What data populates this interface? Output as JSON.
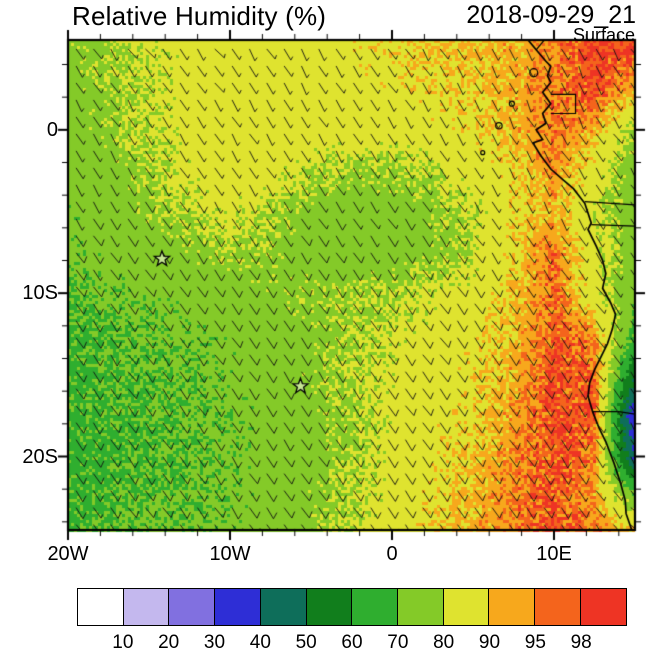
{
  "chart_data": {
    "type": "heatmap",
    "title": "Relative Humidity (%)",
    "datetime": "2018-09-29_21",
    "level": "Surface",
    "units": "%",
    "extent": {
      "lon_min": -20,
      "lon_max": 15,
      "lat_min": -24.5,
      "lat_max": 5.5
    },
    "xticks": [
      {
        "lon": -20,
        "label": "20W"
      },
      {
        "lon": -10,
        "label": "10W"
      },
      {
        "lon": 0,
        "label": "0"
      },
      {
        "lon": 10,
        "label": "10E"
      }
    ],
    "yticks": [
      {
        "lat": 0,
        "label": "0"
      },
      {
        "lat": -10,
        "label": "10S"
      },
      {
        "lat": -20,
        "label": "20S"
      }
    ],
    "levels": [
      10,
      20,
      30,
      40,
      50,
      60,
      70,
      80,
      90,
      95,
      98
    ],
    "colors": [
      "#ffffff",
      "#c4b8ee",
      "#8170e0",
      "#2e2ed6",
      "#0e6e5a",
      "#117e1c",
      "#2fae2f",
      "#84ca28",
      "#dfe32f",
      "#f7a81c",
      "#f4641c",
      "#ee3424"
    ],
    "colorbar_labels": [
      "10",
      "20",
      "30",
      "40",
      "50",
      "60",
      "70",
      "80",
      "90",
      "95",
      "98"
    ],
    "rh_grid": {
      "lons": [
        -20,
        -17.5,
        -15,
        -12.5,
        -10,
        -7.5,
        -5,
        -2.5,
        0,
        2.5,
        5,
        7.5,
        10,
        12.5,
        15
      ],
      "lats": [
        5,
        2.5,
        0,
        -2.5,
        -5,
        -7.5,
        -10,
        -12.5,
        -15,
        -17.5,
        -20,
        -22.5,
        -25
      ],
      "values": [
        [
          77,
          79,
          82,
          84,
          85,
          86,
          86,
          87,
          88,
          90,
          91,
          92,
          94,
          99,
          99
        ],
        [
          76,
          78,
          81,
          84,
          85,
          85,
          85,
          86,
          87,
          88,
          90,
          92,
          95,
          99,
          92
        ],
        [
          75,
          78,
          81,
          84,
          86,
          85,
          85,
          85,
          85,
          86,
          88,
          91,
          96,
          92,
          78
        ],
        [
          74,
          76,
          79,
          83,
          86,
          84,
          81,
          79,
          79,
          81,
          85,
          89,
          94,
          86,
          75
        ],
        [
          73,
          75,
          78,
          81,
          83,
          80,
          76,
          74,
          75,
          77,
          81,
          87,
          92,
          82,
          74
        ],
        [
          72,
          74,
          75,
          77,
          79,
          78,
          75,
          74,
          75,
          77,
          80,
          89,
          96,
          84,
          76
        ],
        [
          70,
          72,
          73,
          74,
          75,
          77,
          78,
          79,
          80,
          82,
          84,
          90,
          97,
          84,
          72
        ],
        [
          69,
          70,
          71,
          72,
          73,
          75,
          77,
          80,
          82,
          84,
          87,
          91,
          97,
          94,
          68
        ],
        [
          68,
          69,
          70,
          71,
          73,
          75,
          77,
          80,
          83,
          85,
          88,
          92,
          98,
          97,
          52
        ],
        [
          68,
          69,
          69,
          71,
          72,
          74,
          76,
          79,
          83,
          86,
          89,
          93,
          98,
          97,
          30
        ],
        [
          67,
          68,
          69,
          70,
          72,
          74,
          76,
          79,
          84,
          87,
          90,
          94,
          98,
          96,
          38
        ],
        [
          68,
          69,
          70,
          71,
          72,
          74,
          77,
          80,
          84,
          88,
          91,
          95,
          98,
          93,
          72
        ],
        [
          69,
          70,
          71,
          72,
          73,
          75,
          78,
          81,
          85,
          89,
          92,
          95,
          98,
          96,
          94
        ]
      ]
    },
    "wind_grid": {
      "lons": [
        -20,
        -15,
        -10,
        -5,
        0,
        5,
        10,
        15
      ],
      "lats": [
        5,
        0,
        -5,
        -10,
        -15,
        -20,
        -25
      ],
      "u": [
        [
          -3,
          -3,
          -3,
          -3,
          -3,
          -3,
          -2,
          -2
        ],
        [
          -3,
          -3,
          -3,
          -3,
          -3,
          -3,
          -2,
          -2
        ],
        [
          -4,
          -4,
          -4,
          -4,
          -4,
          -4,
          -3,
          -3
        ],
        [
          -5,
          -5,
          -5,
          -5,
          -5,
          -5,
          -4,
          -3
        ],
        [
          -5,
          -5,
          -5,
          -5,
          -6,
          -6,
          -5,
          -3
        ],
        [
          -5,
          -5,
          -5,
          -6,
          -6,
          -7,
          -5,
          -2
        ],
        [
          -4,
          -5,
          -5,
          -6,
          -6,
          -7,
          -6,
          -3
        ]
      ],
      "v": [
        [
          4,
          4,
          4,
          5,
          5,
          5,
          4,
          3
        ],
        [
          5,
          5,
          5,
          5,
          5,
          5,
          4,
          3
        ],
        [
          6,
          6,
          6,
          6,
          6,
          6,
          5,
          4
        ],
        [
          7,
          7,
          7,
          7,
          7,
          7,
          6,
          4
        ],
        [
          7,
          7,
          7,
          8,
          8,
          8,
          7,
          4
        ],
        [
          7,
          7,
          8,
          8,
          9,
          9,
          8,
          3
        ],
        [
          6,
          7,
          7,
          8,
          9,
          10,
          8,
          3
        ]
      ]
    },
    "coastline": [
      [
        8.4,
        5.5
      ],
      [
        8.9,
        4.9
      ],
      [
        9.5,
        4.2
      ],
      [
        9.8,
        3.9
      ],
      [
        9.6,
        3.3
      ],
      [
        9.8,
        2.9
      ],
      [
        9.3,
        2.3
      ],
      [
        9.8,
        1.6
      ],
      [
        9.3,
        1.0
      ],
      [
        9.5,
        0.4
      ],
      [
        8.9,
        0.0
      ],
      [
        9.3,
        -0.6
      ],
      [
        8.7,
        -0.8
      ],
      [
        9.2,
        -1.6
      ],
      [
        9.8,
        -2.4
      ],
      [
        10.6,
        -3.1
      ],
      [
        11.2,
        -3.6
      ],
      [
        11.9,
        -4.5
      ],
      [
        12.3,
        -5.7
      ],
      [
        12.1,
        -6.1
      ],
      [
        12.6,
        -7.1
      ],
      [
        13.0,
        -8.0
      ],
      [
        13.2,
        -8.8
      ],
      [
        13.0,
        -9.7
      ],
      [
        13.5,
        -10.6
      ],
      [
        13.8,
        -11.3
      ],
      [
        13.6,
        -12.2
      ],
      [
        13.3,
        -13.1
      ],
      [
        12.9,
        -13.9
      ],
      [
        12.5,
        -14.7
      ],
      [
        12.2,
        -15.5
      ],
      [
        12.1,
        -16.3
      ],
      [
        12.4,
        -17.3
      ],
      [
        12.8,
        -18.3
      ],
      [
        13.2,
        -19.1
      ],
      [
        13.7,
        -20.4
      ],
      [
        14.1,
        -21.6
      ],
      [
        14.4,
        -22.7
      ],
      [
        14.45,
        -23.5
      ],
      [
        14.8,
        -24.5
      ]
    ],
    "borders": [
      [
        [
          8.9,
          4.9
        ],
        [
          9.4,
          5.5
        ]
      ],
      [
        [
          9.8,
          2.17
        ],
        [
          11.33,
          2.17
        ],
        [
          11.33,
          1.0
        ],
        [
          9.8,
          1.0
        ]
      ],
      [
        [
          11.9,
          -4.4
        ],
        [
          15.0,
          -4.6
        ]
      ],
      [
        [
          12.3,
          -5.8
        ],
        [
          15.0,
          -5.9
        ]
      ],
      [
        [
          12.4,
          -17.25
        ],
        [
          14.0,
          -17.25
        ],
        [
          15.0,
          -17.4
        ]
      ]
    ],
    "islands": [
      {
        "lon": 8.75,
        "lat": 3.5,
        "r": 4
      },
      {
        "lon": 7.4,
        "lat": 1.6,
        "r": 2.5
      },
      {
        "lon": 6.6,
        "lat": 0.25,
        "r": 3.2
      },
      {
        "lon": 5.6,
        "lat": -1.4,
        "r": 2
      }
    ],
    "stars": [
      {
        "lon": -14.2,
        "lat": -7.9
      },
      {
        "lon": -5.65,
        "lat": -15.7
      }
    ]
  }
}
